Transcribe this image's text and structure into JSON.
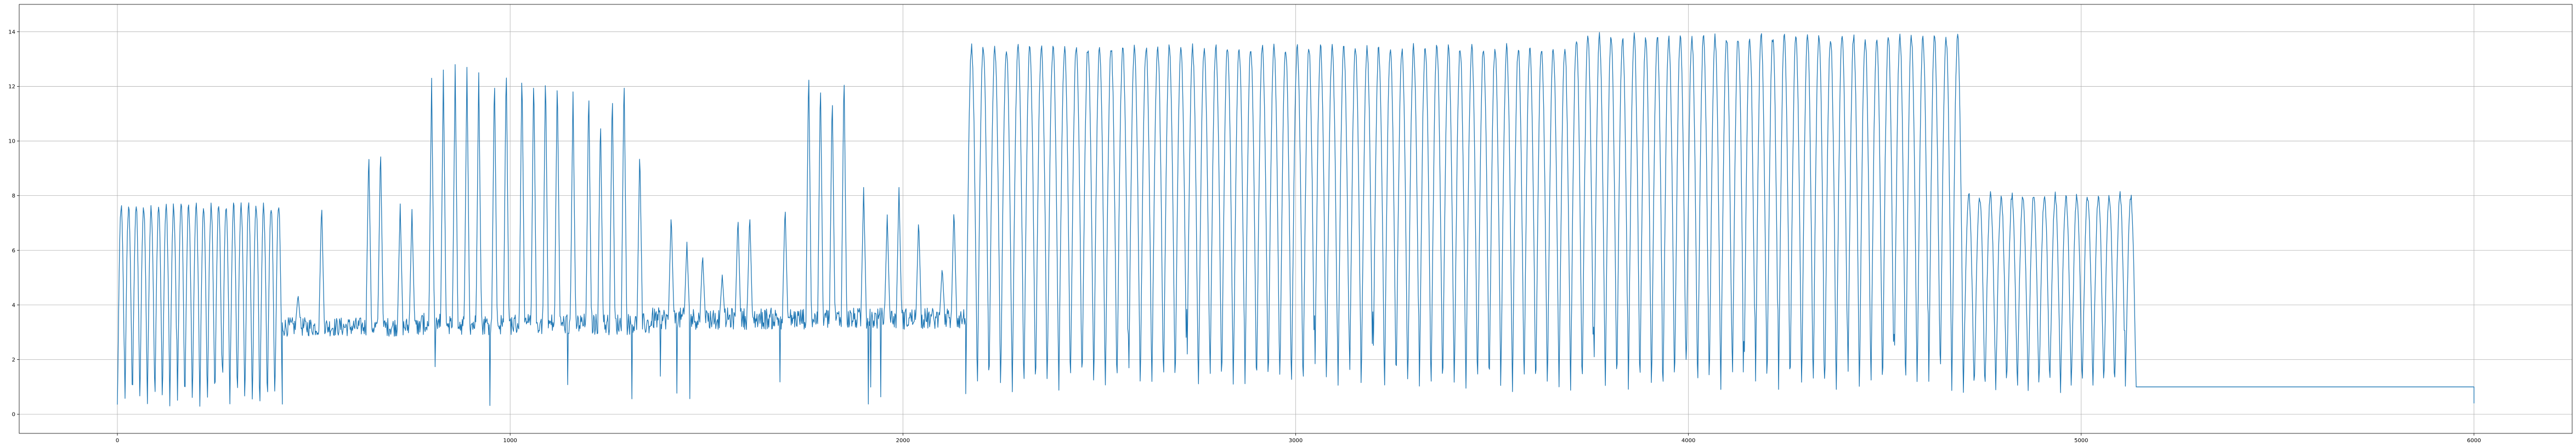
{
  "chart_data": {
    "type": "line",
    "title": "",
    "xlabel": "",
    "ylabel": "",
    "xlim": [
      -250,
      6250
    ],
    "ylim": [
      -0.7,
      15.0
    ],
    "grid": true,
    "legend": "none",
    "x_ticks": [
      0,
      1000,
      2000,
      3000,
      4000,
      5000,
      6000
    ],
    "x_tick_labels": [
      "0",
      "1000",
      "2000",
      "3000",
      "4000",
      "5000",
      "6000"
    ],
    "y_ticks": [
      0,
      2,
      4,
      6,
      8,
      10,
      12,
      14
    ],
    "y_tick_labels": [
      "0",
      "2",
      "4",
      "6",
      "8",
      "10",
      "12",
      "14"
    ],
    "series": [
      {
        "color": "#1f77b4",
        "segments": [
          {
            "x_start": 0,
            "x_end": 420,
            "cycles": 22,
            "low": 0.3,
            "high": 7.6,
            "mode": "wave"
          },
          {
            "x_start": 420,
            "x_end": 770,
            "base": 3.2,
            "noise": 0.35,
            "spikes": [
              [
                460,
                4.4
              ],
              [
                520,
                7.8
              ],
              [
                640,
                9.8
              ],
              [
                670,
                9.9
              ],
              [
                720,
                7.7
              ],
              [
                750,
                7.5
              ]
            ],
            "mode": "noise"
          },
          {
            "x_start": 770,
            "x_end": 1360,
            "base": 3.3,
            "noise": 0.4,
            "spikes": [
              [
                800,
                12.3
              ],
              [
                830,
                12.6
              ],
              [
                860,
                12.8
              ],
              [
                890,
                12.7
              ],
              [
                920,
                12.5
              ],
              [
                960,
                12.6
              ],
              [
                990,
                13.0
              ],
              [
                1030,
                12.8
              ],
              [
                1060,
                12.6
              ],
              [
                1090,
                12.7
              ],
              [
                1120,
                12.5
              ],
              [
                1160,
                11.8
              ],
              [
                1200,
                12.1
              ],
              [
                1230,
                11.0
              ],
              [
                1260,
                12.0
              ],
              [
                1290,
                12.6
              ],
              [
                1330,
                9.8
              ]
            ],
            "dips": true,
            "mode": "noise"
          },
          {
            "x_start": 1360,
            "x_end": 2160,
            "base": 3.5,
            "noise": 0.4,
            "spikes": [
              [
                1410,
                7.4
              ],
              [
                1450,
                6.3
              ],
              [
                1490,
                5.9
              ],
              [
                1540,
                5.1
              ],
              [
                1580,
                7.3
              ],
              [
                1610,
                7.4
              ],
              [
                1700,
                7.7
              ],
              [
                1760,
                12.9
              ],
              [
                1790,
                12.4
              ],
              [
                1820,
                11.9
              ],
              [
                1850,
                12.7
              ],
              [
                1900,
                8.3
              ],
              [
                1960,
                7.3
              ],
              [
                1990,
                8.3
              ],
              [
                2040,
                7.2
              ],
              [
                2100,
                5.4
              ],
              [
                2130,
                7.6
              ]
            ],
            "dips": true,
            "mode": "noise"
          },
          {
            "x_start": 2160,
            "x_end": 3700,
            "cycles": 52,
            "low": 0.9,
            "high": 13.4,
            "mode": "wave"
          },
          {
            "x_start": 3700,
            "x_end": 4700,
            "cycles": 34,
            "low": 0.9,
            "high": 13.8,
            "mode": "wave"
          },
          {
            "x_start": 4700,
            "x_end": 5140,
            "cycles": 16,
            "low": 0.9,
            "high": 8.0,
            "mode": "wave"
          },
          {
            "x_start": 5140,
            "x_end": 6000,
            "level": 1.0,
            "mode": "flat"
          }
        ]
      }
    ]
  }
}
